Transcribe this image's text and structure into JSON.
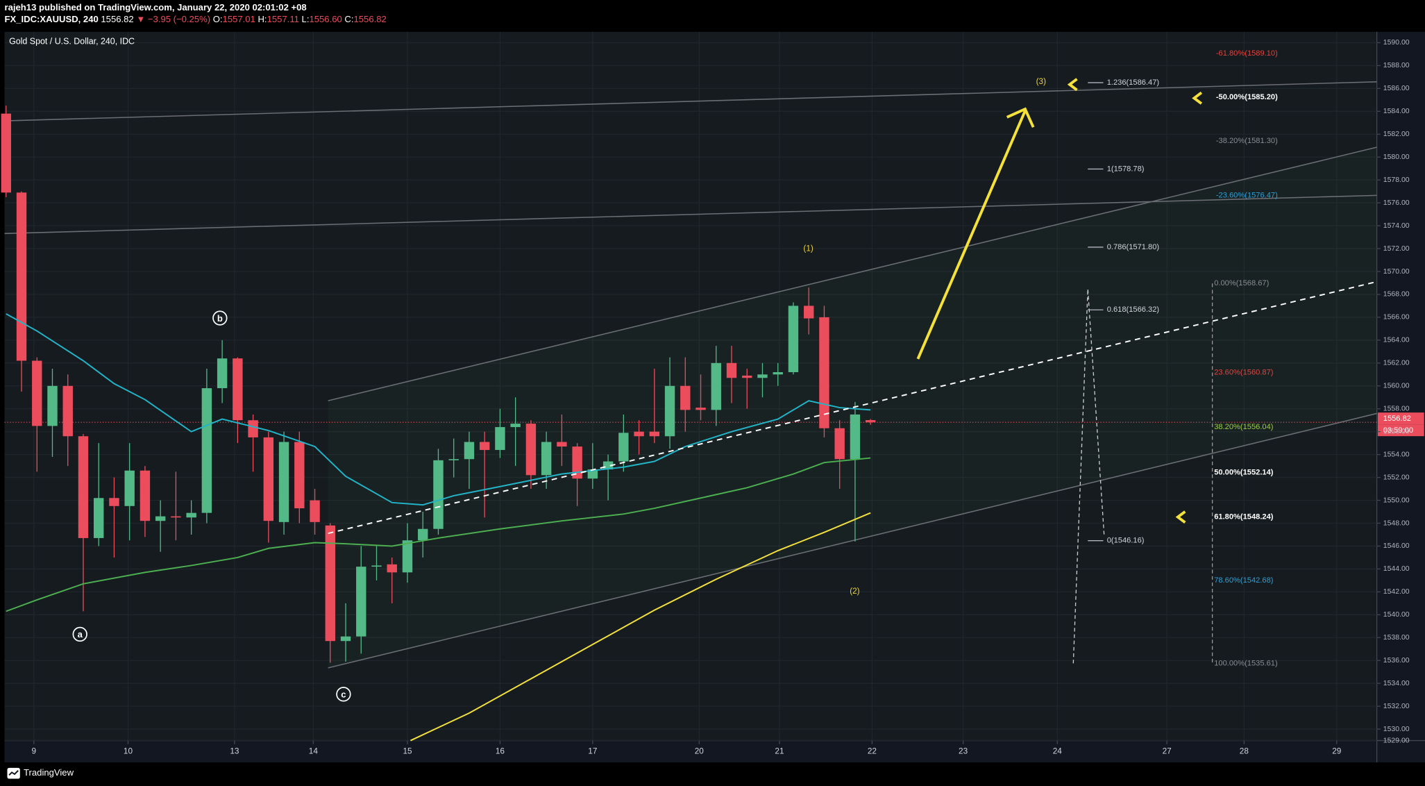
{
  "header": {
    "author_line": "rajeh13 published on TradingView.com, January 22, 2020 02:01:02 +08",
    "symbol": "FX_IDC:XAUUSD, 240",
    "last": "1556.82",
    "change": "▼ −3.95 (−0.25%)",
    "o_label": "O:",
    "open": "1557.01",
    "h_label": "H:",
    "high": "1557.11",
    "l_label": "L:",
    "low": "1556.60",
    "c_label": "C:",
    "close": "1556.82"
  },
  "chart_data": {
    "type": "candlestick",
    "title": "Gold Spot / U.S. Dollar, 240, IDC",
    "candles": {
      "open": [
        1583.8,
        1576.9,
        1562.2,
        1556.5,
        1560,
        1555.6,
        1546.7,
        1550.2,
        1549.5,
        1552.6,
        1548.2,
        1548.6,
        1548.5,
        1548.9,
        1559.8,
        1562.4,
        1557,
        1555.5,
        1548.1,
        1555.1,
        1550,
        1547.8,
        1537.7,
        1538.1,
        1544.2,
        1544.4,
        1543.7,
        1546.5,
        1547.5,
        1553.5,
        1553.6,
        1555.1,
        1554.4,
        1556.4,
        1556.7,
        1552.2,
        1555.1,
        1554.7,
        1551.9,
        1552.7,
        1553.4,
        1556,
        1556,
        1555.6,
        1560,
        1558.1,
        1557.9,
        1562,
        1560.9,
        1560.7,
        1561,
        1561.2,
        1567,
        1566,
        1556.3,
        1553.6,
        1557.01
      ],
      "high": [
        1584.5,
        1577,
        1562.5,
        1561.5,
        1561,
        1555.8,
        1555,
        1552,
        1555,
        1553,
        1550,
        1552.5,
        1550,
        1561.5,
        1564,
        1562.5,
        1557.5,
        1556,
        1556,
        1556,
        1551,
        1548,
        1541,
        1546,
        1546,
        1545,
        1548,
        1549,
        1554.5,
        1555.4,
        1556,
        1556,
        1558,
        1559,
        1557,
        1556,
        1557.5,
        1555,
        1555,
        1554,
        1557.5,
        1557,
        1561.5,
        1562.5,
        1562.5,
        1561,
        1563.5,
        1563.5,
        1561.5,
        1562,
        1562,
        1567.3,
        1568.6,
        1567,
        1557,
        1558.6,
        1557.11
      ],
      "low": [
        1576.5,
        1559.5,
        1552.5,
        1553.8,
        1553,
        1540.3,
        1546,
        1545,
        1546.5,
        1546.8,
        1545.5,
        1546.5,
        1547,
        1548,
        1558.5,
        1555,
        1552.5,
        1546.3,
        1547,
        1548,
        1547,
        1535.8,
        1535.9,
        1536.6,
        1543,
        1541,
        1542.8,
        1545,
        1547,
        1552,
        1551,
        1548.5,
        1553.7,
        1553,
        1551,
        1551,
        1553,
        1549.5,
        1551,
        1550,
        1552.5,
        1554,
        1555,
        1554.5,
        1556,
        1557,
        1556.5,
        1558.5,
        1558,
        1559,
        1560,
        1561,
        1564.5,
        1555.5,
        1551,
        1546.4,
        1556.6
      ],
      "close": [
        1576.9,
        1562.2,
        1556.5,
        1560,
        1555.6,
        1546.7,
        1550.2,
        1549.5,
        1552.6,
        1548.2,
        1548.6,
        1548.5,
        1548.9,
        1559.8,
        1562.4,
        1557,
        1555.5,
        1548.2,
        1555.1,
        1549.3,
        1548.1,
        1537.7,
        1538.1,
        1544.2,
        1544.3,
        1543.7,
        1546.5,
        1547.5,
        1553.5,
        1553.6,
        1555.1,
        1554.4,
        1556.4,
        1556.7,
        1552.2,
        1555.1,
        1554.7,
        1551.9,
        1552.7,
        1553.4,
        1555.9,
        1555.6,
        1555.6,
        1560,
        1557.9,
        1557.9,
        1562,
        1560.7,
        1560.7,
        1561,
        1561.2,
        1567,
        1565.9,
        1556.3,
        1553.6,
        1557.5,
        1556.82
      ]
    },
    "up_color": "#53b987",
    "down_color": "#eb4d5c",
    "indicators": [
      {
        "color": "#22b5c9",
        "x": [
          0,
          2,
          5,
          7,
          9,
          12,
          14,
          17,
          20,
          22,
          25,
          27,
          29,
          32,
          36,
          40,
          42,
          44,
          47,
          50,
          52,
          54,
          56
        ],
        "values": [
          1566.3,
          1564.8,
          1562.2,
          1560.2,
          1558.8,
          1556.0,
          1557.1,
          1556.1,
          1554.7,
          1552.1,
          1549.8,
          1549.6,
          1550.4,
          1551.2,
          1552.3,
          1552.9,
          1553.4,
          1554.7,
          1556.0,
          1557.1,
          1558.7,
          1558.1,
          1557.9
        ]
      },
      {
        "color": "#4caf50",
        "x": [
          0,
          2,
          5,
          9,
          12,
          15,
          17,
          20,
          22,
          25,
          28,
          32,
          36,
          40,
          42,
          45,
          48,
          51,
          53,
          56
        ],
        "values": [
          1540.3,
          1541.3,
          1542.7,
          1543.7,
          1544.3,
          1545.0,
          1545.8,
          1546.3,
          1546.2,
          1546.0,
          1546.7,
          1547.5,
          1548.2,
          1548.8,
          1549.3,
          1550.2,
          1551.1,
          1552.3,
          1553.3,
          1553.7
        ]
      },
      {
        "color": "#f5e13c",
        "x": [
          26.2,
          30,
          34,
          38,
          42,
          46,
          50,
          53,
          56
        ],
        "values": [
          1529.0,
          1531.4,
          1534.4,
          1537.4,
          1540.4,
          1543.1,
          1545.6,
          1547.2,
          1548.9
        ]
      }
    ],
    "xlim": [
      -0.1,
      88.8
    ],
    "xticks": [
      {
        "value": 1.8,
        "label": "9"
      },
      {
        "value": 7.9,
        "label": "10"
      },
      {
        "value": 14.8,
        "label": "13"
      },
      {
        "value": 19.9,
        "label": "14"
      },
      {
        "value": 26,
        "label": "15"
      },
      {
        "value": 32,
        "label": "16"
      },
      {
        "value": 38,
        "label": "17"
      },
      {
        "value": 44.9,
        "label": "20"
      },
      {
        "value": 50.1,
        "label": "21"
      },
      {
        "value": 56.1,
        "label": "22"
      },
      {
        "value": 62,
        "label": "23"
      },
      {
        "value": 68.1,
        "label": "24"
      },
      {
        "value": 75.2,
        "label": "27"
      },
      {
        "value": 80.2,
        "label": "28"
      },
      {
        "value": 86.2,
        "label": "29"
      }
    ],
    "ylim": [
      1529,
      1590.95
    ],
    "yticks": [
      {
        "value": 1590,
        "label": "1590.00"
      },
      {
        "value": 1588,
        "label": "1588.00"
      },
      {
        "value": 1586,
        "label": "1586.00"
      },
      {
        "value": 1584,
        "label": "1584.00"
      },
      {
        "value": 1582,
        "label": "1582.00"
      },
      {
        "value": 1580,
        "label": "1580.00"
      },
      {
        "value": 1578,
        "label": "1578.00"
      },
      {
        "value": 1576,
        "label": "1576.00"
      },
      {
        "value": 1574,
        "label": "1574.00"
      },
      {
        "value": 1572,
        "label": "1572.00"
      },
      {
        "value": 1570,
        "label": "1570.00"
      },
      {
        "value": 1568,
        "label": "1568.00"
      },
      {
        "value": 1566,
        "label": "1566.00"
      },
      {
        "value": 1564,
        "label": "1564.00"
      },
      {
        "value": 1562,
        "label": "1562.00"
      },
      {
        "value": 1560,
        "label": "1560.00"
      },
      {
        "value": 1558,
        "label": "1558.00"
      },
      {
        "value": 1556,
        "label": "1556.00"
      },
      {
        "value": 1554,
        "label": "1554.00"
      },
      {
        "value": 1552,
        "label": "1552.00"
      },
      {
        "value": 1550,
        "label": "1550.00"
      },
      {
        "value": 1548,
        "label": "1548.00"
      },
      {
        "value": 1546,
        "label": "1546.00"
      },
      {
        "value": 1544,
        "label": "1544.00"
      },
      {
        "value": 1542,
        "label": "1542.00"
      },
      {
        "value": 1540,
        "label": "1540.00"
      },
      {
        "value": 1538,
        "label": "1538.00"
      },
      {
        "value": 1536,
        "label": "1536.00"
      },
      {
        "value": 1534,
        "label": "1534.00"
      },
      {
        "value": 1532,
        "label": "1532.00"
      },
      {
        "value": 1530,
        "label": "1530.00"
      },
      {
        "value": 1529,
        "label": "1529.00"
      }
    ],
    "grid": true,
    "price_label": {
      "value": 1556.82,
      "label": "1556.82"
    },
    "countdown": "03:59:00",
    "annotations": {
      "wave1": "(1)",
      "wave2": "(2)",
      "wave3": "(3)",
      "a": "a",
      "b": "b",
      "c": "c",
      "ext": [
        "1.236(1586.47)",
        "1(1578.78)",
        "0.786(1571.80)",
        "0.618(1566.32)",
        "0(1546.16)"
      ],
      "retr": [
        "-61.80%(1589.10)",
        "-50.00%(1585.20)",
        "-38.20%(1581.30)",
        "-23.60%(1576.47)",
        "0.00%(1568.67)",
        "23.60%(1560.87)",
        "38.20%(1556.04)",
        "50.00%(1552.14)",
        "61.80%(1548.24)",
        "78.60%(1542.68)",
        "100.00%(1535.61)"
      ]
    }
  },
  "footer": {
    "brand": "TradingView"
  }
}
